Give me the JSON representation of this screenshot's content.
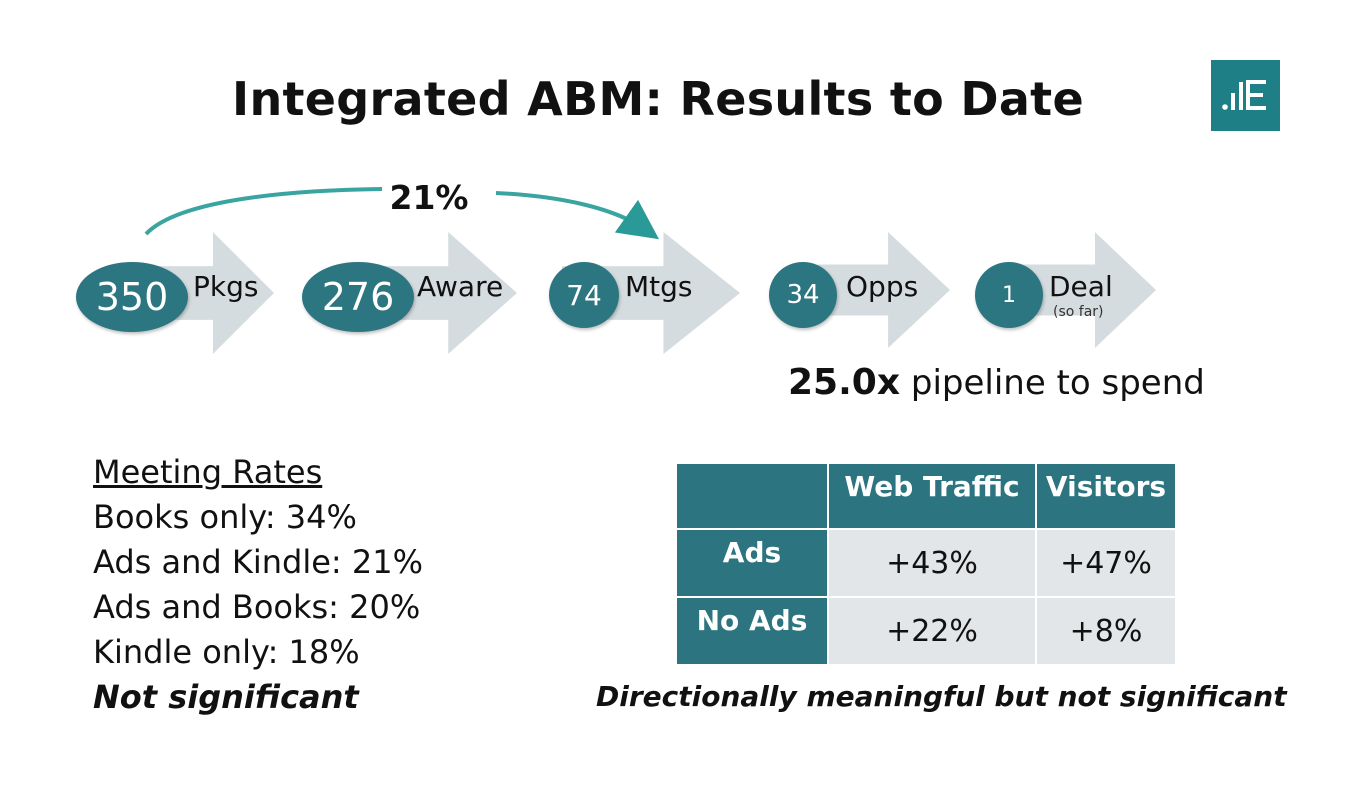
{
  "title": "Integrated ABM: Results to Date",
  "logo": {
    "icon": "brand-logo-icon",
    "color": "#1f7f86"
  },
  "conversion": {
    "label": "21%"
  },
  "funnel": [
    {
      "value": "350",
      "label": "Pkgs",
      "sub": ""
    },
    {
      "value": "276",
      "label": "Aware",
      "sub": ""
    },
    {
      "value": "74",
      "label": "Mtgs",
      "sub": ""
    },
    {
      "value": "34",
      "label": "Opps",
      "sub": ""
    },
    {
      "value": "1",
      "label": "Deal",
      "sub": "(so far)"
    }
  ],
  "pipeline": {
    "multiple": "25.0x",
    "text": "pipeline to spend"
  },
  "meeting_rates": {
    "heading": "Meeting Rates",
    "items": [
      "Books only: 34%",
      "Ads and Kindle: 21%",
      "Ads and Books: 20%",
      "Kindle only: 18%"
    ],
    "note": "Not significant"
  },
  "table": {
    "headers": [
      "",
      "Web Traffic",
      "Visitors"
    ],
    "rows": [
      {
        "label": "Ads",
        "values": [
          "+43%",
          "+47%"
        ]
      },
      {
        "label": "No Ads",
        "values": [
          "+22%",
          "+8%"
        ]
      }
    ],
    "note": "Directionally meaningful but not significant"
  },
  "colors": {
    "accent": "#2b7680",
    "arrow": "#d5dcdf",
    "table_cell": "#e3e6e8"
  }
}
